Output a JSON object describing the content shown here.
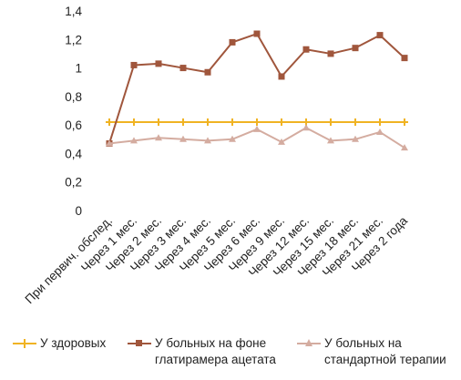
{
  "chart_data": {
    "type": "line",
    "categories": [
      "При первич. обслед.",
      "Через 1 мес.",
      "Через 2 мес.",
      "Через 3 мес.",
      "Через 4 мес.",
      "Через 5 мес.",
      "Через 6 мес.",
      "Через 9 мес.",
      "Через 12 мес.",
      "Через 15 мес.",
      "Через 18 мес.",
      "Через 21 мес.",
      "Через 2 года"
    ],
    "ylim": [
      0,
      1.4
    ],
    "yticks": [
      "0",
      "0,2",
      "0,4",
      "0,6",
      "0,8",
      "1",
      "1,2",
      "1,4"
    ],
    "series": [
      {
        "name": "У здоровых",
        "color": "#f0b323",
        "marker": "plus",
        "values": [
          0.62,
          0.62,
          0.62,
          0.62,
          0.62,
          0.62,
          0.62,
          0.62,
          0.62,
          0.62,
          0.62,
          0.62,
          0.62
        ]
      },
      {
        "name": "У больных на фоне глатирамера ацетата",
        "color": "#a0563c",
        "marker": "square",
        "values": [
          0.47,
          1.02,
          1.03,
          1.0,
          0.97,
          1.18,
          1.24,
          0.94,
          1.13,
          1.1,
          1.14,
          1.23,
          1.07
        ]
      },
      {
        "name": "У больных на стандартной терапии",
        "color": "#d4aca0",
        "marker": "triangle",
        "values": [
          0.47,
          0.49,
          0.51,
          0.5,
          0.49,
          0.5,
          0.57,
          0.48,
          0.58,
          0.49,
          0.5,
          0.55,
          0.44
        ]
      }
    ],
    "legend_position": "bottom",
    "grid": false
  },
  "legend": {
    "items": [
      {
        "label_lines": [
          "У здоровых"
        ]
      },
      {
        "label_lines": [
          "У больных на фоне",
          "глатирамера ацетата"
        ]
      },
      {
        "label_lines": [
          "У больных на",
          "стандартной терапии"
        ]
      }
    ]
  }
}
